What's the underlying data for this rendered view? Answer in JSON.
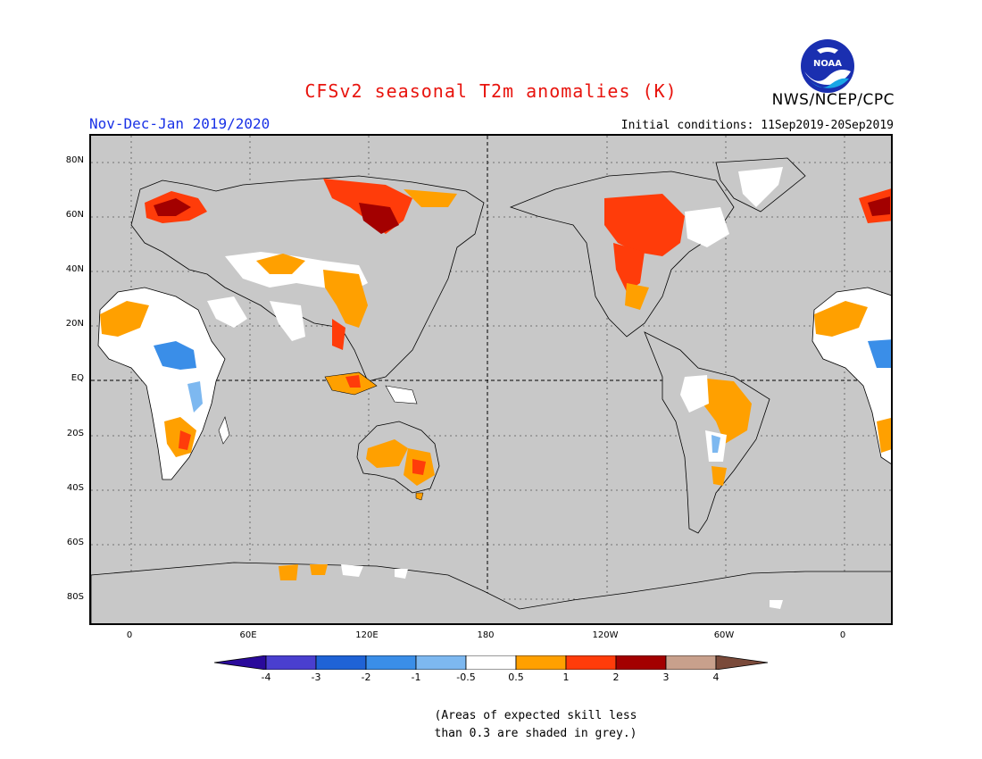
{
  "header": {
    "title": "CFSv2 seasonal T2m anomalies (K)",
    "agency": "NWS/NCEP/CPC",
    "period": "Nov-Dec-Jan 2019/2020",
    "initial_conditions": "Initial conditions: 11Sep2019-20Sep2019",
    "logo_text": "NOAA"
  },
  "colors": {
    "title": "#e8140e",
    "period": "#1a32e6",
    "ocean_grey": "#c8c8c8",
    "land_grey": "#c8c8c8",
    "coast": "#000000"
  },
  "axes": {
    "lat_labels": [
      "80N",
      "60N",
      "40N",
      "20N",
      "EQ",
      "20S",
      "40S",
      "60S",
      "80S"
    ],
    "lon_labels": [
      "0",
      "60E",
      "120E",
      "180",
      "120W",
      "60W",
      "0"
    ]
  },
  "colorbar": {
    "labels": [
      "-4",
      "-3",
      "-2",
      "-1",
      "-0.5",
      "0.5",
      "1",
      "2",
      "3",
      "4"
    ],
    "colors": [
      "#2a0a9b",
      "#4a3fcf",
      "#1f63d6",
      "#3a8ee8",
      "#7db8f0",
      "#ffffff",
      "#ffa000",
      "#ff3c0a",
      "#a30000",
      "#c8a08c",
      "#7a4a3a"
    ]
  },
  "note": {
    "line1": "(Areas of expected skill less",
    "line2": "than 0.3 are shaded in grey.)"
  }
}
